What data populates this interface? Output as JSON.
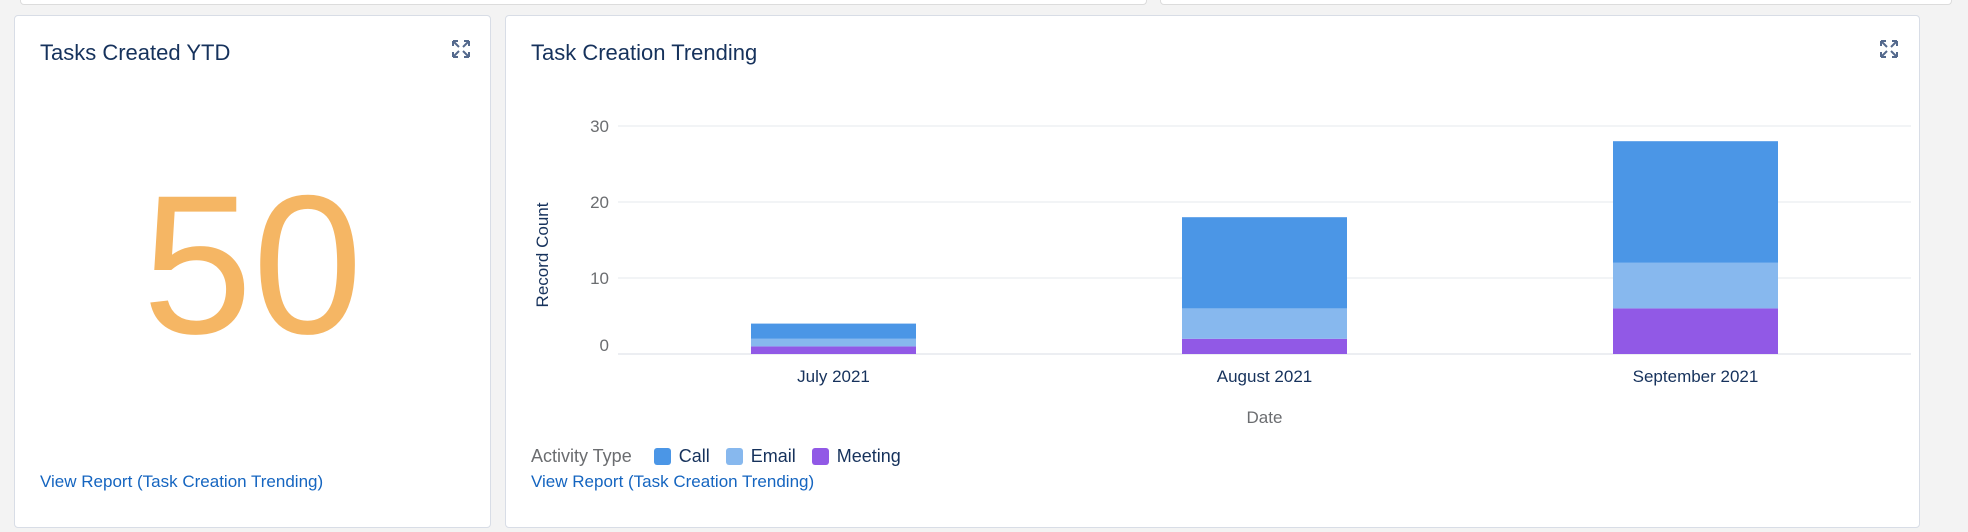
{
  "metric_card": {
    "title": "Tasks Created YTD",
    "value": "50",
    "value_color": "#f5b664",
    "link": "View Report (Task Creation Trending)",
    "icon": "expand-icon"
  },
  "chart_card": {
    "title": "Task Creation Trending",
    "link": "View Report (Task Creation Trending)",
    "icon": "expand-icon",
    "legend_title": "Activity Type"
  },
  "chart_data": {
    "type": "bar",
    "stacked": true,
    "categories": [
      "July 2021",
      "August 2021",
      "September 2021"
    ],
    "series": [
      {
        "name": "Meeting",
        "values": [
          1,
          2,
          6
        ],
        "color": "#9159e6"
      },
      {
        "name": "Email",
        "values": [
          1,
          4,
          6
        ],
        "color": "#87b8ee"
      },
      {
        "name": "Call",
        "values": [
          2,
          12,
          16
        ],
        "color": "#4b96e6"
      }
    ],
    "xlabel": "Date",
    "ylabel": "Record Count",
    "ylim": [
      0,
      30
    ],
    "yticks": [
      0,
      10,
      20,
      30
    ],
    "grid": true,
    "legend_position": "bottom-left"
  }
}
